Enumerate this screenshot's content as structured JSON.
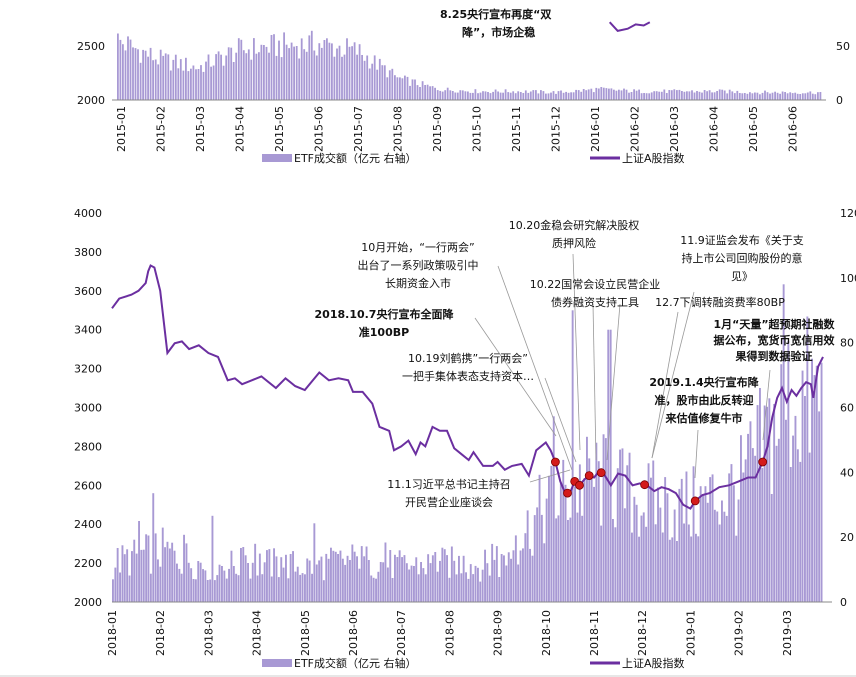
{
  "colors": {
    "bar": "#a899d4",
    "line": "#6b2fa0",
    "marker": "#d41b1b",
    "leader": "#999999"
  },
  "chart_data": [
    {
      "type": "bar+line",
      "title": "",
      "x_ticks": [
        "2015-01",
        "2015-02",
        "2015-03",
        "2015-04",
        "2015-05",
        "2015-06",
        "2015-07",
        "2015-08",
        "2015-09",
        "2015-10",
        "2015-11",
        "2015-12",
        "2016-01",
        "2016-02",
        "2016-03",
        "2016-04",
        "2016-05",
        "2016-06"
      ],
      "y_left_ticks": [
        2000,
        2500
      ],
      "y_right_ticks": [
        0,
        50
      ],
      "y_left_visible_range": [
        2000,
        2720
      ],
      "y_right_visible_range": [
        0,
        72
      ],
      "legend": [
        "ETF成交额（亿元 右轴）",
        "上证A股指数"
      ],
      "annotations": [
        "8.25央行宣布再度“双",
        "降”，市场企稳"
      ],
      "series": [
        {
          "name": "ETF成交额（亿元 右轴）",
          "type": "bar",
          "axis": "right",
          "month_avg": [
            55,
            38,
            30,
            46,
            50,
            52,
            45,
            20,
            10,
            8,
            8,
            7,
            10,
            8,
            8,
            8,
            7,
            7
          ]
        },
        {
          "name": "上证A股指数",
          "type": "line",
          "axis": "left",
          "visible": [
            {
              "month": 12.3,
              "value": 2720
            },
            {
              "month": 12.5,
              "value": 2640
            },
            {
              "month": 12.75,
              "value": 2660
            },
            {
              "month": 12.95,
              "value": 2700
            },
            {
              "month": 13.15,
              "value": 2690
            },
            {
              "month": 13.3,
              "value": 2720
            }
          ]
        }
      ]
    },
    {
      "type": "bar+line",
      "title": "",
      "x_ticks": [
        "2018-01",
        "2018-02",
        "2018-03",
        "2018-04",
        "2018-05",
        "2018-06",
        "2018-07",
        "2018-08",
        "2018-09",
        "2018-10",
        "2018-11",
        "2018-12",
        "2019-01",
        "2019-02",
        "2019-03"
      ],
      "y_left_ticks": [
        2000,
        2200,
        2400,
        2600,
        2800,
        3000,
        3200,
        3400,
        3600,
        3800,
        4000
      ],
      "y_right_ticks": [
        0,
        20,
        40,
        60,
        80,
        100,
        120
      ],
      "y_left_range": [
        2000,
        4000
      ],
      "y_right_range": [
        0,
        120
      ],
      "legend": [
        "ETF成交额（亿元 右轴）",
        "上证A股指数"
      ],
      "series": [
        {
          "name": "ETF成交额（亿元 右轴）",
          "type": "bar",
          "axis": "right",
          "month_avg": [
            12,
            16,
            11,
            12,
            11,
            13,
            11,
            12,
            11,
            30,
            38,
            31,
            29,
            35,
            62
          ],
          "peaks": [
            {
              "month": 9.55,
              "value": 90
            },
            {
              "month": 10.3,
              "value": 84
            },
            {
              "month": 13.9,
              "value": 98
            }
          ]
        },
        {
          "name": "上证A股指数",
          "type": "line",
          "axis": "left",
          "points": [
            {
              "month": 0.0,
              "value": 3510
            },
            {
              "month": 0.15,
              "value": 3560
            },
            {
              "month": 0.4,
              "value": 3580
            },
            {
              "month": 0.55,
              "value": 3600
            },
            {
              "month": 0.7,
              "value": 3640
            },
            {
              "month": 0.75,
              "value": 3700
            },
            {
              "month": 0.8,
              "value": 3730
            },
            {
              "month": 0.88,
              "value": 3720
            },
            {
              "month": 1.0,
              "value": 3600
            },
            {
              "month": 1.15,
              "value": 3280
            },
            {
              "month": 1.3,
              "value": 3330
            },
            {
              "month": 1.45,
              "value": 3340
            },
            {
              "month": 1.6,
              "value": 3300
            },
            {
              "month": 1.8,
              "value": 3320
            },
            {
              "month": 2.0,
              "value": 3280
            },
            {
              "month": 2.2,
              "value": 3260
            },
            {
              "month": 2.4,
              "value": 3140
            },
            {
              "month": 2.55,
              "value": 3150
            },
            {
              "month": 2.7,
              "value": 3120
            },
            {
              "month": 2.9,
              "value": 3140
            },
            {
              "month": 3.1,
              "value": 3160
            },
            {
              "month": 3.4,
              "value": 3100
            },
            {
              "month": 3.6,
              "value": 3150
            },
            {
              "month": 3.8,
              "value": 3110
            },
            {
              "month": 4.0,
              "value": 3090
            },
            {
              "month": 4.3,
              "value": 3180
            },
            {
              "month": 4.5,
              "value": 3140
            },
            {
              "month": 4.7,
              "value": 3150
            },
            {
              "month": 4.9,
              "value": 3140
            },
            {
              "month": 5.0,
              "value": 3080
            },
            {
              "month": 5.2,
              "value": 3080
            },
            {
              "month": 5.4,
              "value": 3020
            },
            {
              "month": 5.55,
              "value": 2900
            },
            {
              "month": 5.75,
              "value": 2880
            },
            {
              "month": 5.85,
              "value": 2780
            },
            {
              "month": 6.0,
              "value": 2800
            },
            {
              "month": 6.15,
              "value": 2830
            },
            {
              "month": 6.3,
              "value": 2760
            },
            {
              "month": 6.4,
              "value": 2820
            },
            {
              "month": 6.5,
              "value": 2800
            },
            {
              "month": 6.65,
              "value": 2900
            },
            {
              "month": 6.8,
              "value": 2880
            },
            {
              "month": 6.95,
              "value": 2880
            },
            {
              "month": 7.1,
              "value": 2790
            },
            {
              "month": 7.25,
              "value": 2760
            },
            {
              "month": 7.4,
              "value": 2730
            },
            {
              "month": 7.5,
              "value": 2770
            },
            {
              "month": 7.7,
              "value": 2700
            },
            {
              "month": 7.9,
              "value": 2700
            },
            {
              "month": 8.0,
              "value": 2720
            },
            {
              "month": 8.15,
              "value": 2680
            },
            {
              "month": 8.3,
              "value": 2700
            },
            {
              "month": 8.5,
              "value": 2710
            },
            {
              "month": 8.65,
              "value": 2650
            },
            {
              "month": 8.8,
              "value": 2780
            },
            {
              "month": 9.0,
              "value": 2820
            },
            {
              "month": 9.1,
              "value": 2780
            },
            {
              "month": 9.2,
              "value": 2720
            },
            {
              "month": 9.3,
              "value": 2620
            },
            {
              "month": 9.4,
              "value": 2560
            },
            {
              "month": 9.5,
              "value": 2560
            },
            {
              "month": 9.6,
              "value": 2620
            },
            {
              "month": 9.7,
              "value": 2600
            },
            {
              "month": 9.8,
              "value": 2630
            },
            {
              "month": 9.9,
              "value": 2650
            },
            {
              "month": 10.0,
              "value": 2640
            },
            {
              "month": 10.1,
              "value": 2670
            },
            {
              "month": 10.2,
              "value": 2660
            },
            {
              "month": 10.35,
              "value": 2600
            },
            {
              "month": 10.5,
              "value": 2660
            },
            {
              "month": 10.65,
              "value": 2650
            },
            {
              "month": 10.8,
              "value": 2600
            },
            {
              "month": 10.95,
              "value": 2610
            },
            {
              "month": 11.1,
              "value": 2600
            },
            {
              "month": 11.25,
              "value": 2570
            },
            {
              "month": 11.4,
              "value": 2590
            },
            {
              "month": 11.55,
              "value": 2580
            },
            {
              "month": 11.7,
              "value": 2560
            },
            {
              "month": 11.85,
              "value": 2500
            },
            {
              "month": 12.0,
              "value": 2480
            },
            {
              "month": 12.1,
              "value": 2520
            },
            {
              "month": 12.25,
              "value": 2550
            },
            {
              "month": 12.4,
              "value": 2560
            },
            {
              "month": 12.6,
              "value": 2590
            },
            {
              "month": 12.8,
              "value": 2600
            },
            {
              "month": 13.0,
              "value": 2620
            },
            {
              "month": 13.2,
              "value": 2640
            },
            {
              "month": 13.35,
              "value": 2640
            },
            {
              "month": 13.5,
              "value": 2720
            },
            {
              "month": 13.6,
              "value": 2800
            },
            {
              "month": 13.7,
              "value": 2950
            },
            {
              "month": 13.8,
              "value": 3050
            },
            {
              "month": 13.9,
              "value": 3100
            },
            {
              "month": 14.0,
              "value": 3030
            },
            {
              "month": 14.1,
              "value": 3090
            },
            {
              "month": 14.2,
              "value": 3060
            },
            {
              "month": 14.3,
              "value": 3100
            },
            {
              "month": 14.4,
              "value": 3130
            },
            {
              "month": 14.5,
              "value": 3120
            },
            {
              "month": 14.55,
              "value": 3050
            },
            {
              "month": 14.65,
              "value": 3210
            },
            {
              "month": 14.75,
              "value": 3260
            }
          ]
        }
      ],
      "event_markers": [
        {
          "month": 9.2,
          "value": 2720
        },
        {
          "month": 9.45,
          "value": 2560
        },
        {
          "month": 9.6,
          "value": 2650
        },
        {
          "month": 9.7,
          "value": 2590
        },
        {
          "month": 9.9,
          "value": 2600
        },
        {
          "month": 10.15,
          "value": 2590
        },
        {
          "month": 11.05,
          "value": 2600
        },
        {
          "month": 12.1,
          "value": 2520
        },
        {
          "month": 13.5,
          "value": 2740
        }
      ],
      "annotations": [
        {
          "id": "a1",
          "lines": [
            "10月开始，“一行两会”",
            "出台了一系列政策吸引中",
            "长期资金入市"
          ],
          "bold": false
        },
        {
          "id": "a2",
          "lines": [
            "10.20金稳会研究解决股权",
            "质押风险"
          ],
          "bold": false
        },
        {
          "id": "a3",
          "lines": [
            "11.9证监会发布《关于支",
            "持上市公司回购股份的意",
            "见》"
          ],
          "bold": false
        },
        {
          "id": "a4",
          "lines": [
            "10.22国常会设立民营企业",
            "债券融资支持工具"
          ],
          "bold": false
        },
        {
          "id": "a5",
          "lines": [
            "12.7下调转融资费率80BP"
          ],
          "bold": false
        },
        {
          "id": "a6",
          "lines": [
            "2018.10.7央行宣布全面降",
            "准100BP"
          ],
          "bold": true
        },
        {
          "id": "a7",
          "lines": [
            "1月“天量”超预期社融数",
            "据公布，宽货币宽信用效",
            "果得到数据验证"
          ],
          "bold": true
        },
        {
          "id": "a8",
          "lines": [
            "10.19刘鹤携”一行两会”",
            "一把手集体表态支持资本…"
          ],
          "bold": false
        },
        {
          "id": "a9",
          "lines": [
            "2019.1.4央行宣布降",
            "准，股市由此反转迎",
            "来估值修复牛市"
          ],
          "bold": true
        },
        {
          "id": "a10",
          "lines": [
            "11.1习近平总书记主持召",
            "开民营企业座谈会"
          ],
          "bold": false
        }
      ]
    }
  ]
}
